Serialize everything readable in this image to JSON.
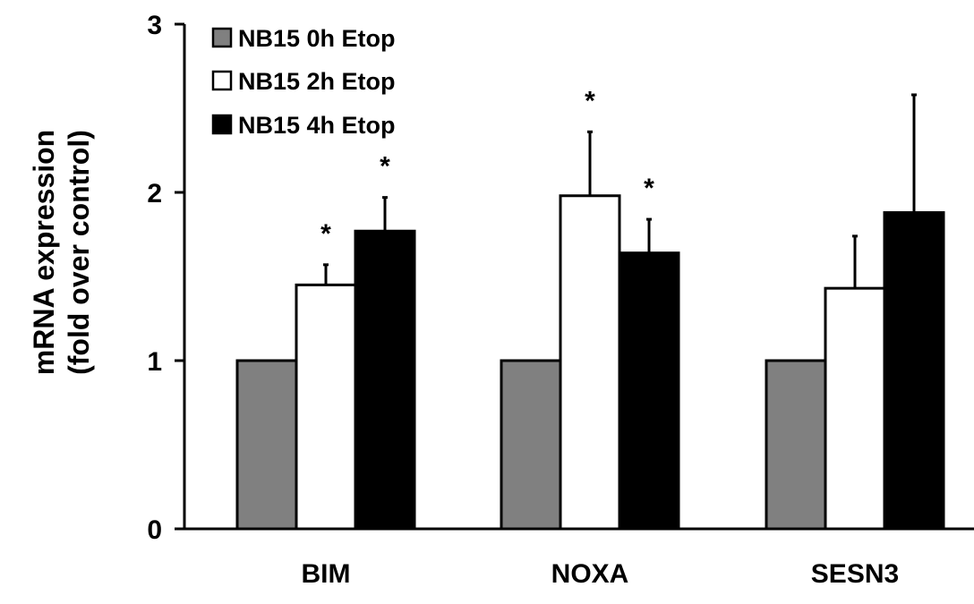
{
  "chart_data": {
    "type": "bar",
    "title": "",
    "ylabel_lines": [
      "mRNA expression",
      "(fold over control)"
    ],
    "xlabel": "",
    "ylim": [
      0,
      3
    ],
    "yticks": [
      0,
      1,
      2,
      3
    ],
    "categories": [
      "BIM",
      "NOXA",
      "SESN3"
    ],
    "series": [
      {
        "name": "NB15 0h Etop",
        "color": "#808080",
        "values": [
          1.0,
          1.0,
          1.0
        ],
        "errors": [
          0,
          0,
          0
        ],
        "significant": [
          false,
          false,
          false
        ]
      },
      {
        "name": "NB15 2h Etop",
        "color": "#ffffff",
        "values": [
          1.45,
          1.98,
          1.43
        ],
        "errors": [
          0.12,
          0.38,
          0.31
        ],
        "significant": [
          true,
          true,
          false
        ]
      },
      {
        "name": "NB15 4h Etop",
        "color": "#000000",
        "values": [
          1.77,
          1.64,
          1.88
        ],
        "errors": [
          0.2,
          0.2,
          0.7
        ],
        "significant": [
          true,
          true,
          false
        ]
      }
    ],
    "significance_marker": "*",
    "legend_position": "top-left",
    "grid": false
  }
}
